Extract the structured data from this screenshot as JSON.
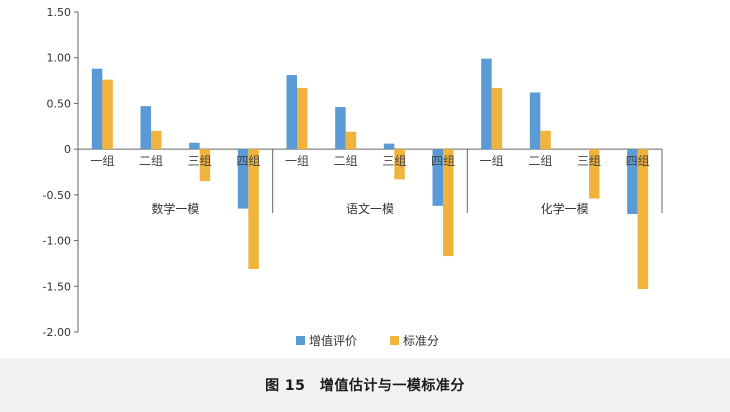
{
  "caption": "图 15　增值估计与一模标准分",
  "chart_data": {
    "type": "bar",
    "title": "",
    "xlabel": "",
    "ylabel": "",
    "ylim": [
      -2.0,
      1.5
    ],
    "yticks": [
      "1.50",
      "1.00",
      "0.50",
      "0",
      "-0.50",
      "-1.00",
      "-1.50",
      "-2.00"
    ],
    "ytick_values": [
      1.5,
      1.0,
      0.5,
      0,
      -0.5,
      -1.0,
      -1.5,
      -2.0
    ],
    "grid": false,
    "legend_position": "bottom",
    "groups": [
      {
        "name": "数学一模",
        "categories": [
          "一组",
          "二组",
          "三组",
          "四组"
        ]
      },
      {
        "name": "语文一模",
        "categories": [
          "一组",
          "二组",
          "三组",
          "四组"
        ]
      },
      {
        "name": "化学一模",
        "categories": [
          "一组",
          "二组",
          "三组",
          "四组"
        ]
      }
    ],
    "series": [
      {
        "name": "增值评价",
        "color": "#5b9bd5",
        "values": [
          0.88,
          0.47,
          0.07,
          -0.65,
          0.81,
          0.46,
          0.06,
          -0.62,
          0.99,
          0.62,
          0.0,
          -0.71
        ]
      },
      {
        "name": "标准分",
        "color": "#f0b43c",
        "values": [
          0.76,
          0.2,
          -0.35,
          -1.31,
          0.67,
          0.19,
          -0.33,
          -1.17,
          0.67,
          0.2,
          -0.54,
          -1.53
        ]
      }
    ]
  }
}
